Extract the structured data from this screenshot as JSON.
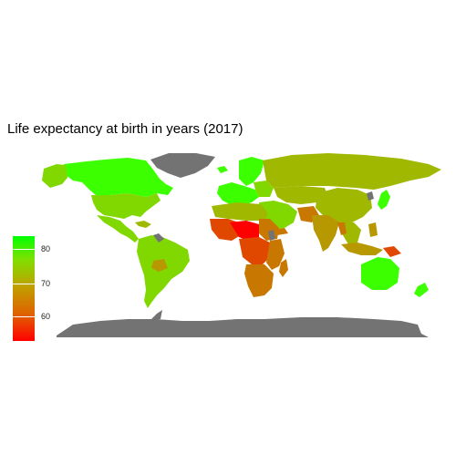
{
  "title": "Life expectancy at birth in years (2017)",
  "legend": {
    "ticks": [
      "80",
      "70",
      "60"
    ],
    "scale": "continuous",
    "min_value": 52,
    "max_value": 85,
    "low_color": "#ff0000",
    "mid_color": "#c0a000",
    "high_color": "#00ff00",
    "na_color": "#737373"
  },
  "colors": {
    "background": "#ffffff",
    "no_data": "#737373",
    "very_high": "#3cff00",
    "high": "#80d800",
    "upper_mid": "#a0b800",
    "mid": "#b89800",
    "lower_mid": "#c87800",
    "low": "#e04800",
    "very_low": "#ff0000"
  }
}
